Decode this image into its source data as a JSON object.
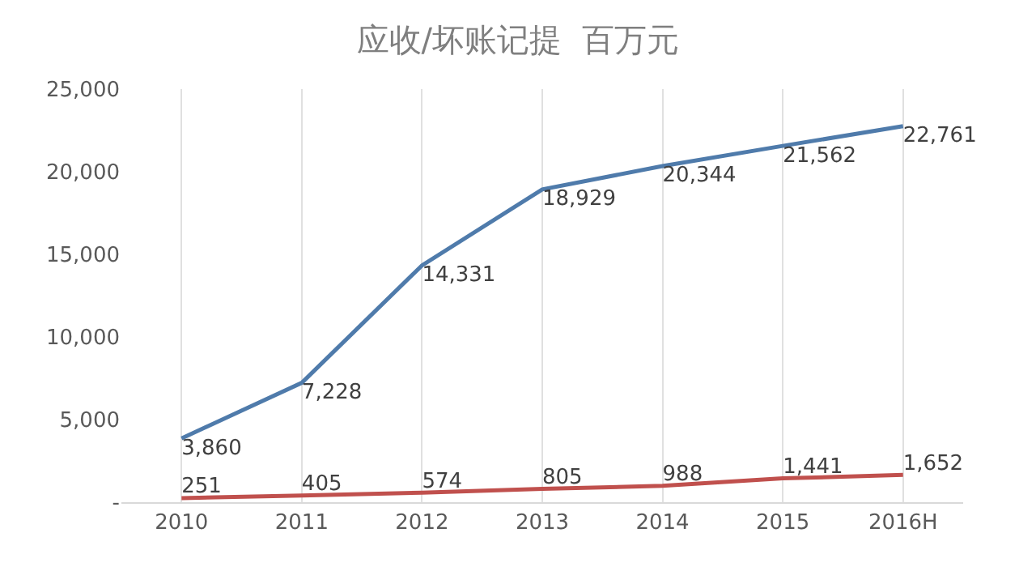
{
  "chart_data": {
    "type": "line",
    "title": "应收/坏账记提  百万元",
    "categories": [
      "2010",
      "2011",
      "2012",
      "2013",
      "2014",
      "2015",
      "2016H"
    ],
    "series": [
      {
        "color": "#4f7bab",
        "values": [
          3860,
          7228,
          14331,
          18929,
          20344,
          21562,
          22761
        ],
        "value_labels": [
          "3,860",
          "7,228",
          "14,331",
          "18,929",
          "20,344",
          "21,562",
          "22,761"
        ]
      },
      {
        "color": "#c0504d",
        "values": [
          251,
          405,
          574,
          805,
          988,
          1441,
          1652
        ],
        "value_labels": [
          "251",
          "405",
          "574",
          "805",
          "988",
          "1,441",
          "1,652"
        ]
      }
    ],
    "ylim": [
      0,
      25000
    ],
    "yticks": [
      {
        "value": 0,
        "label": "-"
      },
      {
        "value": 5000,
        "label": "5,000"
      },
      {
        "value": 10000,
        "label": "10,000"
      },
      {
        "value": 15000,
        "label": "15,000"
      },
      {
        "value": 20000,
        "label": "20,000"
      },
      {
        "value": 25000,
        "label": "25,000"
      }
    ],
    "grid": "x",
    "marker": "none",
    "line_style": "solid"
  }
}
